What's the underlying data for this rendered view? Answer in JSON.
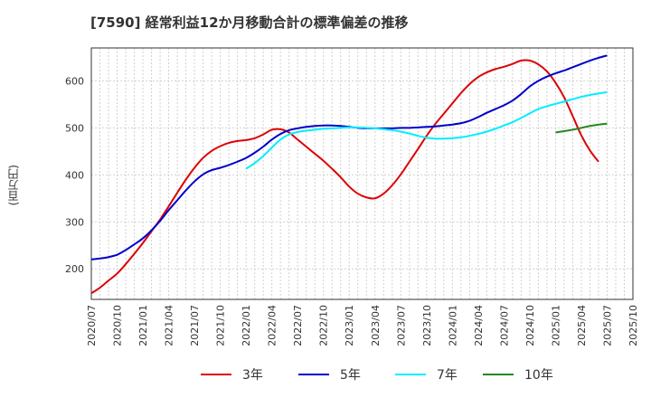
{
  "title": "[7590]  経常利益12か月移動合計の標準偏差の推移",
  "chart_data": {
    "type": "line",
    "title": "[7590]  経常利益12か月移動合計の標準偏差の推移",
    "ylabel": "(百万円)",
    "xlabel": "",
    "ylim": [
      135,
      670
    ],
    "yticks": [
      200,
      300,
      400,
      500,
      600
    ],
    "xlim": [
      "2020/07",
      "2025/10"
    ],
    "xticks": [
      "2020/07",
      "2020/10",
      "2021/01",
      "2021/04",
      "2021/07",
      "2021/10",
      "2022/01",
      "2022/04",
      "2022/07",
      "2022/10",
      "2023/01",
      "2023/04",
      "2023/07",
      "2023/10",
      "2024/01",
      "2024/04",
      "2024/07",
      "2024/10",
      "2025/01",
      "2025/04",
      "2025/07",
      "2025/10"
    ],
    "grid": true,
    "legend_position": "bottom",
    "series": [
      {
        "name": "3年",
        "color": "#dd0000",
        "x": [
          "2020/07",
          "2020/08",
          "2020/09",
          "2020/10",
          "2020/11",
          "2020/12",
          "2021/01",
          "2021/02",
          "2021/03",
          "2021/04",
          "2021/05",
          "2021/06",
          "2021/07",
          "2021/08",
          "2021/09",
          "2021/10",
          "2021/11",
          "2021/12",
          "2022/01",
          "2022/02",
          "2022/03",
          "2022/04",
          "2022/05",
          "2022/06",
          "2022/07",
          "2022/08",
          "2022/09",
          "2022/10",
          "2022/11",
          "2022/12",
          "2023/01",
          "2023/02",
          "2023/03",
          "2023/04",
          "2023/05",
          "2023/06",
          "2023/07",
          "2023/08",
          "2023/09",
          "2023/10",
          "2023/11",
          "2023/12",
          "2024/01",
          "2024/02",
          "2024/03",
          "2024/04",
          "2024/05",
          "2024/06",
          "2024/07",
          "2024/08",
          "2024/09",
          "2024/10",
          "2024/11",
          "2024/12",
          "2025/01",
          "2025/02",
          "2025/03",
          "2025/04",
          "2025/05",
          "2025/06",
          "2025/07"
        ],
        "values": [
          148,
          160,
          175,
          190,
          210,
          232,
          255,
          280,
          305,
          333,
          362,
          390,
          415,
          436,
          451,
          461,
          468,
          472,
          474,
          478,
          486,
          496,
          497,
          490,
          475,
          460,
          445,
          430,
          413,
          395,
          375,
          360,
          352,
          350,
          360,
          378,
          401,
          428,
          455,
          483,
          508,
          530,
          552,
          574,
          593,
          608,
          618,
          625,
          630,
          636,
          643,
          643,
          635,
          620,
          596,
          565,
          525,
          484,
          452,
          428,
          null
        ]
      },
      {
        "name": "5年",
        "color": "#0000cc",
        "x": [
          "2020/07",
          "2020/08",
          "2020/09",
          "2020/10",
          "2020/11",
          "2020/12",
          "2021/01",
          "2021/02",
          "2021/03",
          "2021/04",
          "2021/05",
          "2021/06",
          "2021/07",
          "2021/08",
          "2021/09",
          "2021/10",
          "2021/11",
          "2021/12",
          "2022/01",
          "2022/02",
          "2022/03",
          "2022/04",
          "2022/05",
          "2022/06",
          "2022/07",
          "2022/08",
          "2022/09",
          "2022/10",
          "2022/11",
          "2022/12",
          "2023/01",
          "2023/02",
          "2023/03",
          "2023/04",
          "2023/05",
          "2023/06",
          "2023/07",
          "2023/08",
          "2023/09",
          "2023/10",
          "2023/11",
          "2023/12",
          "2024/01",
          "2024/02",
          "2024/03",
          "2024/04",
          "2024/05",
          "2024/06",
          "2024/07",
          "2024/08",
          "2024/09",
          "2024/10",
          "2024/11",
          "2024/12",
          "2025/01",
          "2025/02",
          "2025/03",
          "2025/04",
          "2025/05",
          "2025/06",
          "2025/07"
        ],
        "values": [
          220,
          222,
          225,
          230,
          240,
          252,
          265,
          282,
          302,
          325,
          346,
          367,
          386,
          401,
          410,
          415,
          421,
          428,
          436,
          447,
          460,
          475,
          487,
          495,
          499,
          502,
          504,
          505,
          505,
          504,
          502,
          500,
          499,
          499,
          499,
          499,
          500,
          500,
          501,
          502,
          503,
          505,
          507,
          510,
          515,
          523,
          532,
          540,
          548,
          558,
          572,
          588,
          600,
          609,
          616,
          622,
          629,
          636,
          643,
          649,
          654
        ]
      },
      {
        "name": "7年",
        "color": "#00eeff",
        "x": [
          "2022/01",
          "2022/02",
          "2022/03",
          "2022/04",
          "2022/05",
          "2022/06",
          "2022/07",
          "2022/08",
          "2022/09",
          "2022/10",
          "2022/11",
          "2022/12",
          "2023/01",
          "2023/02",
          "2023/03",
          "2023/04",
          "2023/05",
          "2023/06",
          "2023/07",
          "2023/08",
          "2023/09",
          "2023/10",
          "2023/11",
          "2023/12",
          "2024/01",
          "2024/02",
          "2024/03",
          "2024/04",
          "2024/05",
          "2024/06",
          "2024/07",
          "2024/08",
          "2024/09",
          "2024/10",
          "2024/11",
          "2024/12",
          "2025/01",
          "2025/02",
          "2025/03",
          "2025/04",
          "2025/05",
          "2025/06",
          "2025/07"
        ],
        "values": [
          413,
          425,
          440,
          458,
          475,
          486,
          491,
          494,
          496,
          498,
          499,
          500,
          501,
          501,
          500,
          499,
          497,
          495,
          492,
          488,
          483,
          479,
          477,
          477,
          478,
          480,
          483,
          487,
          492,
          498,
          505,
          512,
          521,
          531,
          540,
          546,
          551,
          556,
          561,
          566,
          570,
          573,
          576
        ]
      },
      {
        "name": "10年",
        "color": "#228822",
        "x": [
          "2025/01",
          "2025/02",
          "2025/03",
          "2025/04",
          "2025/05",
          "2025/06",
          "2025/07"
        ],
        "values": [
          490,
          493,
          496,
          500,
          504,
          507,
          509
        ]
      }
    ]
  }
}
